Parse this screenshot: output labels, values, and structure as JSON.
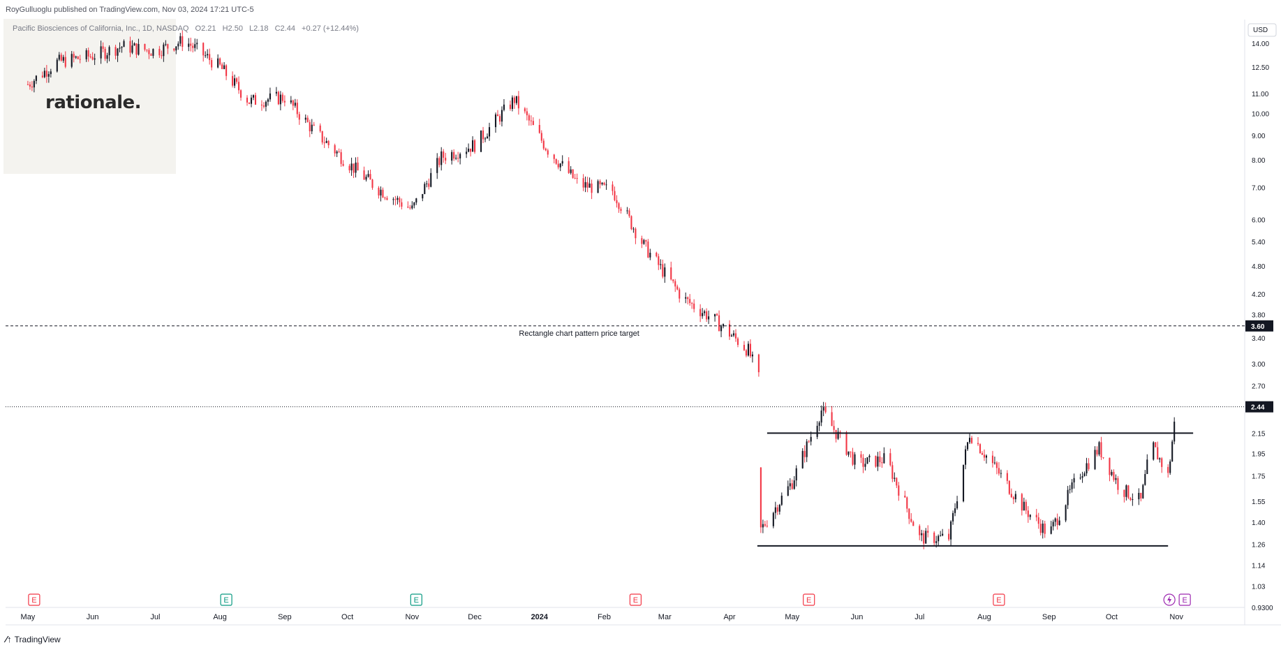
{
  "header": {
    "published_line": "RoyGulluoglu published on TradingView.com, Nov 03, 2024 17:21 UTC-5"
  },
  "symbol": {
    "name": "Pacific Biosciences of California, Inc., 1D, NASDAQ",
    "open": "O2.21",
    "high": "H2.50",
    "low": "L2.18",
    "close": "C2.44",
    "change": "+0.27 (+12.44%)"
  },
  "watermark": "rationale.",
  "currency": "USD",
  "footer": {
    "brand": "TradingView"
  },
  "colors": {
    "up": "#131722",
    "down": "#f23645",
    "axis": "#787b86",
    "earnings_red": "#f23645",
    "earnings_green": "#089981"
  },
  "chart_data": {
    "type": "candlestick",
    "y_scale": "log",
    "ylim": [
      0.93,
      15.6
    ],
    "y_ticks": [
      "14.00",
      "12.50",
      "11.00",
      "10.00",
      "9.00",
      "8.00",
      "7.00",
      "6.00",
      "5.40",
      "4.80",
      "4.20",
      "3.80",
      "3.40",
      "3.00",
      "2.70",
      "2.44",
      "2.15",
      "1.95",
      "1.75",
      "1.55",
      "1.40",
      "1.26",
      "1.14",
      "1.03",
      "0.9300"
    ],
    "x_ticks": [
      "May",
      "Jun",
      "Jul",
      "Aug",
      "Sep",
      "Oct",
      "Nov",
      "Dec",
      "2024",
      "Feb",
      "Mar",
      "Apr",
      "May",
      "Jun",
      "Jul",
      "Aug",
      "Sep",
      "Oct",
      "Nov"
    ],
    "current_price": "2.44",
    "target_price": "3.60",
    "target_label": "Rectangle chart pattern price target",
    "rectangle": {
      "top": 2.15,
      "bottom": 1.25
    },
    "earnings_markers": [
      {
        "label": "E",
        "type": "red"
      },
      {
        "label": "E",
        "type": "green"
      },
      {
        "label": "E",
        "type": "green"
      },
      {
        "label": "E",
        "type": "red"
      },
      {
        "label": "E",
        "type": "red"
      },
      {
        "label": "E",
        "type": "red"
      },
      {
        "label": "E",
        "type": "purple"
      }
    ],
    "close_path": [
      [
        "2023-05-01",
        11.5
      ],
      [
        "2023-05-15",
        12.8
      ],
      [
        "2023-06-01",
        13.2
      ],
      [
        "2023-06-15",
        13.8
      ],
      [
        "2023-07-01",
        13.5
      ],
      [
        "2023-07-15",
        14.2
      ],
      [
        "2023-08-01",
        12.5
      ],
      [
        "2023-08-15",
        10.6
      ],
      [
        "2023-09-01",
        10.8
      ],
      [
        "2023-09-15",
        9.2
      ],
      [
        "2023-10-01",
        7.9
      ],
      [
        "2023-10-15",
        7.0
      ],
      [
        "2023-11-01",
        6.3
      ],
      [
        "2023-11-15",
        8.1
      ],
      [
        "2023-12-01",
        8.6
      ],
      [
        "2023-12-20",
        10.7
      ],
      [
        "2024-01-05",
        8.4
      ],
      [
        "2024-01-20",
        7.1
      ],
      [
        "2024-02-05",
        6.9
      ],
      [
        "2024-02-20",
        5.3
      ],
      [
        "2024-03-10",
        4.1
      ],
      [
        "2024-03-25",
        3.7
      ],
      [
        "2024-04-10",
        3.2
      ],
      [
        "2024-04-15",
        2.8
      ],
      [
        "2024-04-16",
        1.35
      ],
      [
        "2024-05-01",
        1.7
      ],
      [
        "2024-05-15",
        2.4
      ],
      [
        "2024-06-01",
        1.85
      ],
      [
        "2024-06-15",
        1.9
      ],
      [
        "2024-07-01",
        1.3
      ],
      [
        "2024-07-15",
        1.3
      ],
      [
        "2024-07-25",
        2.15
      ],
      [
        "2024-08-05",
        1.85
      ],
      [
        "2024-08-20",
        1.5
      ],
      [
        "2024-09-01",
        1.32
      ],
      [
        "2024-09-15",
        1.75
      ],
      [
        "2024-09-25",
        2.0
      ],
      [
        "2024-10-05",
        1.65
      ],
      [
        "2024-10-15",
        1.55
      ],
      [
        "2024-10-20",
        2.05
      ],
      [
        "2024-10-28",
        1.75
      ],
      [
        "2024-11-01",
        2.44
      ]
    ]
  }
}
